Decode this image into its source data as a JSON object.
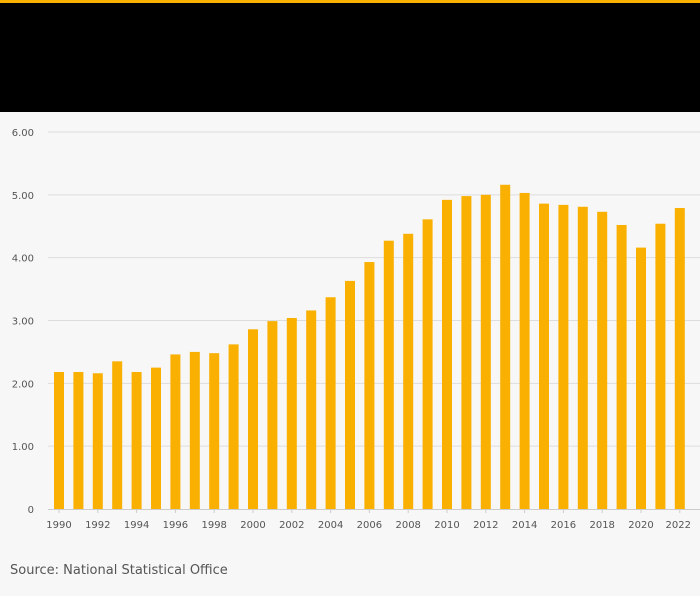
{
  "colors": {
    "accent": "#f9b000",
    "header_bg": "#000000",
    "background": "#f7f7f7",
    "grid": "#dddddd",
    "text": "#555555"
  },
  "source": "Source: National Statistical Office",
  "chart_data": {
    "type": "bar",
    "title": "",
    "xlabel": "",
    "ylabel": "",
    "ylim": [
      0,
      6
    ],
    "yticks": [
      0,
      1,
      2,
      3,
      4,
      5,
      6
    ],
    "ytick_labels": [
      "0",
      "1.00",
      "2.00",
      "3.00",
      "4.00",
      "5.00",
      "6.00"
    ],
    "xtick_labels": [
      "1990",
      "1992",
      "1994",
      "1996",
      "1998",
      "2000",
      "2002",
      "2004",
      "2006",
      "2008",
      "2010",
      "2012",
      "2014",
      "2016",
      "2018",
      "2020",
      "2022"
    ],
    "grid": true,
    "categories": [
      "1990",
      "1991",
      "1992",
      "1993",
      "1994",
      "1995",
      "1996",
      "1997",
      "1998",
      "1999",
      "2000",
      "2001",
      "2002",
      "2003",
      "2004",
      "2005",
      "2006",
      "2007",
      "2008",
      "2009",
      "2010",
      "2011",
      "2012",
      "2013",
      "2014",
      "2015",
      "2016",
      "2017",
      "2018",
      "2019",
      "2020",
      "2021",
      "2022"
    ],
    "values": [
      2.18,
      2.18,
      2.16,
      2.35,
      2.18,
      2.25,
      2.46,
      2.5,
      2.48,
      2.62,
      2.86,
      2.99,
      3.04,
      3.16,
      3.37,
      3.63,
      3.93,
      4.27,
      4.38,
      4.61,
      4.92,
      4.98,
      5.0,
      5.16,
      5.03,
      4.86,
      4.84,
      4.81,
      4.73,
      4.52,
      4.16,
      4.54,
      4.79
    ]
  }
}
